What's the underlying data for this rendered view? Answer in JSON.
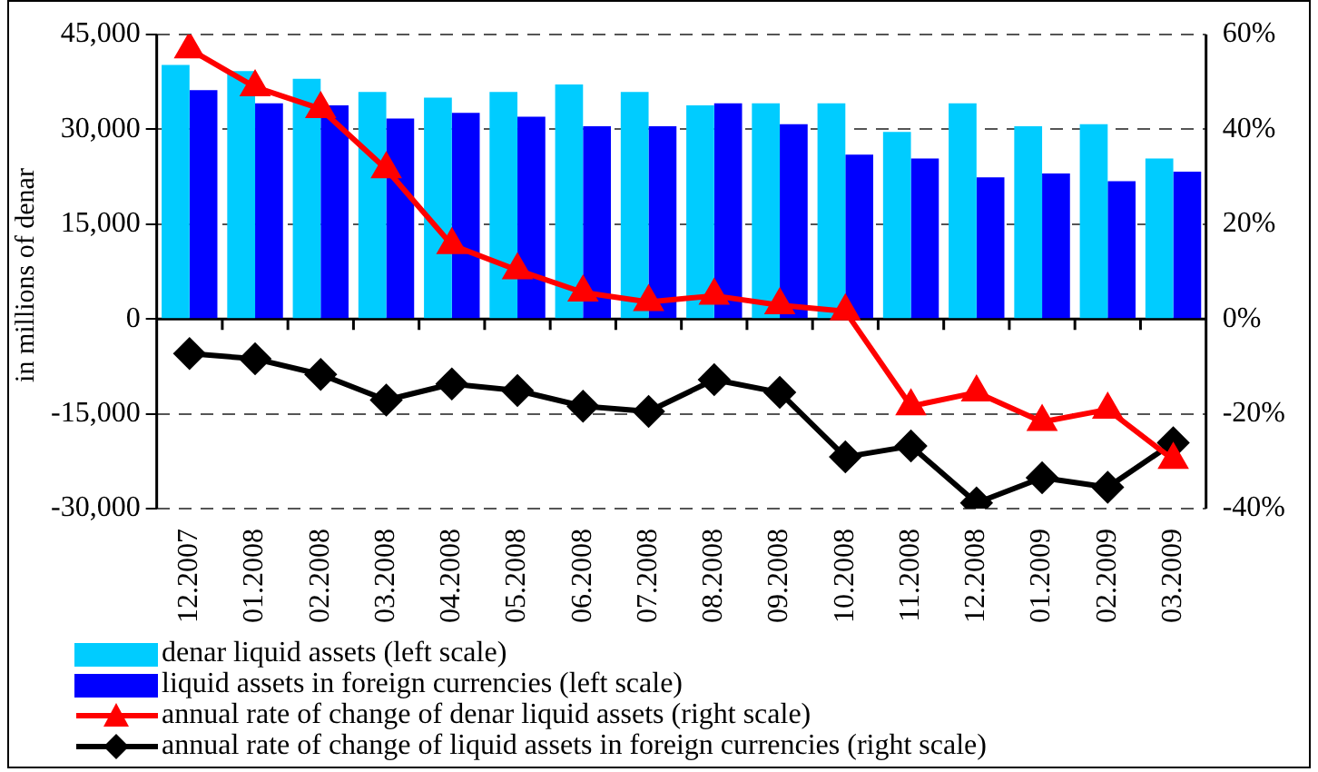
{
  "chart_data": {
    "type": "bar",
    "ylabel": "in millions of denar",
    "categories": [
      "12.2007",
      "01.2008",
      "02.2008",
      "03.2008",
      "04.2008",
      "05.2008",
      "06.2008",
      "07.2008",
      "08.2008",
      "09.2008",
      "10.2008",
      "11.2008",
      "12.2008",
      "01.2009",
      "02.2009",
      "03.2009"
    ],
    "series": [
      {
        "name": "denar liquid assets (left scale)",
        "color": "#00ccff",
        "values": [
          40200,
          39200,
          38000,
          35900,
          35000,
          35900,
          37100,
          35900,
          33800,
          34100,
          34100,
          29600,
          34100,
          30500,
          30800,
          25400
        ]
      },
      {
        "name": "liquid assets in foreign currencies (left scale)",
        "color": "#0000ff",
        "values": [
          36200,
          34100,
          33800,
          31700,
          32600,
          32000,
          30500,
          30500,
          34100,
          30800,
          26000,
          25400,
          22400,
          23000,
          21800,
          23300
        ]
      },
      {
        "name": "annual rate of change of denar liquid assets (right scale)",
        "type": "line",
        "axis": "y2",
        "color": "#ff0000",
        "marker": "triangle",
        "line_style": "solid",
        "values": [
          56.9,
          48.9,
          44.3,
          31.6,
          15.6,
          10.3,
          5.6,
          3.6,
          4.9,
          2.9,
          1.6,
          -18.4,
          -15.5,
          -21.7,
          -19.1,
          -29.7
        ]
      },
      {
        "name": "annual rate of change of liquid assets in foreign currencies (right scale)",
        "type": "line",
        "axis": "y2",
        "color": "#000000",
        "marker": "diamond",
        "line_style": "solid",
        "values": [
          -7.3,
          -8.4,
          -11.7,
          -17.1,
          -13.7,
          -15.1,
          -18.4,
          -19.5,
          -12.8,
          -15.5,
          -29.1,
          -26.8,
          -38.8,
          -33.5,
          -35.5,
          -26.1
        ]
      }
    ],
    "ylim": [
      -30000,
      45000
    ],
    "yticks": [
      {
        "value": -30000,
        "label": "-30,000"
      },
      {
        "value": -15000,
        "label": "-15,000"
      },
      0,
      {
        "value": 15000,
        "label": "15,000"
      },
      {
        "value": 30000,
        "label": "30,000"
      },
      {
        "value": 45000,
        "label": "45,000"
      }
    ],
    "y2lim": [
      -40,
      60
    ],
    "y2ticks": [
      {
        "value": -40,
        "label": "-40%"
      },
      {
        "value": -20,
        "label": "-20%"
      },
      {
        "value": 0,
        "label": "0%"
      },
      {
        "value": 20,
        "label": "20%"
      },
      {
        "value": 40,
        "label": "40%"
      },
      {
        "value": 60,
        "label": "60%"
      }
    ],
    "grid": "y",
    "legend": "bottom"
  }
}
